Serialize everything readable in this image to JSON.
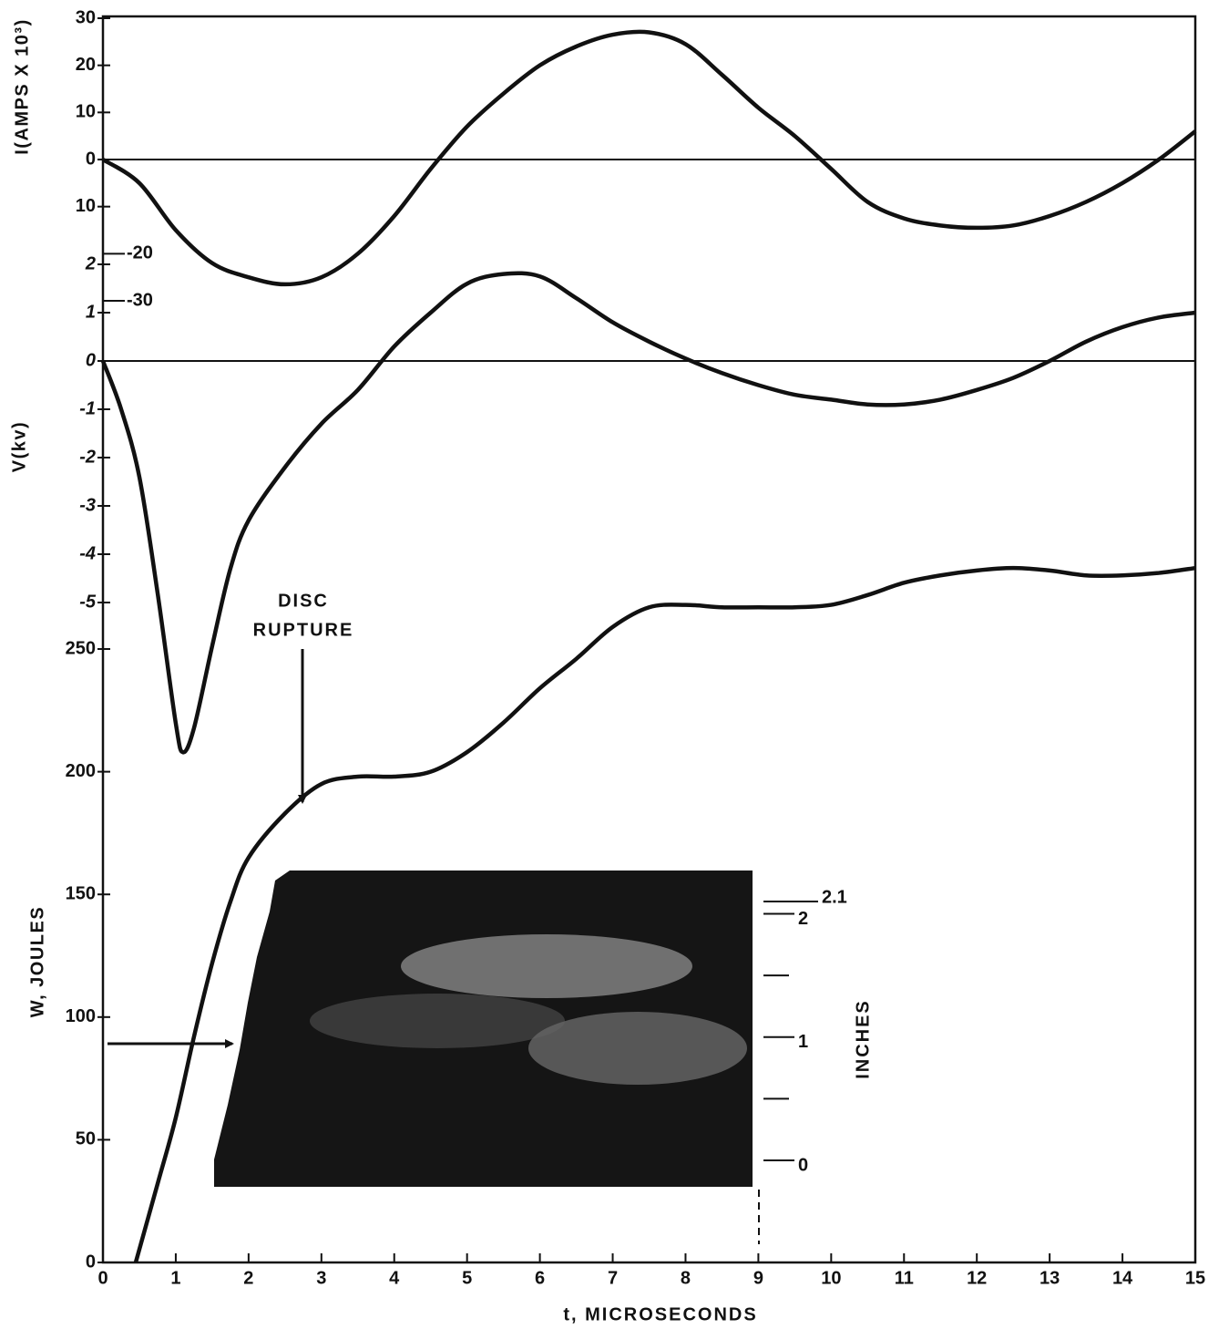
{
  "chart_data": [
    {
      "type": "line",
      "ylabel": "I(AMPS X 10³)",
      "color": "#111111",
      "zero_line": true,
      "ylim": [
        -30,
        30
      ],
      "yticks": [
        30,
        20,
        10,
        0,
        {
          "value": -10,
          "label": "10"
        },
        -20,
        -30
      ],
      "x": [
        0,
        0.5,
        1,
        1.5,
        2,
        2.5,
        3,
        3.5,
        4,
        4.5,
        5,
        5.5,
        6,
        6.5,
        7,
        7.5,
        8,
        8.5,
        9,
        9.5,
        10,
        10.5,
        11,
        11.5,
        12,
        12.5,
        13,
        13.5,
        14,
        14.5,
        15
      ],
      "values": [
        0,
        -5,
        -15,
        -22,
        -25,
        -26.5,
        -25,
        -20,
        -12,
        -2,
        7,
        14,
        20,
        24,
        26.5,
        27,
        24.5,
        18,
        11,
        5,
        -2,
        -9,
        -12.5,
        -14,
        -14.5,
        -14,
        -12,
        -9,
        -5,
        0,
        6
      ]
    },
    {
      "type": "line",
      "ylabel": "V(kv)",
      "color": "#111111",
      "zero_line": true,
      "ylim": [
        -8.5,
        2
      ],
      "yticks": [
        2,
        1,
        0,
        -1,
        -2,
        -3,
        -4,
        -5
      ],
      "x": [
        0,
        0.25,
        0.5,
        0.75,
        1,
        1.1,
        1.25,
        1.5,
        1.75,
        2,
        2.5,
        3,
        3.5,
        4,
        4.5,
        5,
        5.5,
        6,
        6.5,
        7,
        7.5,
        8,
        8.5,
        9,
        9.5,
        10,
        10.5,
        11,
        11.5,
        12,
        12.5,
        13,
        13.5,
        14,
        14.5,
        15
      ],
      "values": [
        0,
        -1,
        -2.4,
        -4.8,
        -7.5,
        -8.1,
        -7.6,
        -5.9,
        -4.3,
        -3.3,
        -2.2,
        -1.3,
        -0.6,
        0.3,
        1,
        1.6,
        1.8,
        1.75,
        1.3,
        0.8,
        0.4,
        0.05,
        -0.25,
        -0.5,
        -0.7,
        -0.8,
        -0.9,
        -0.9,
        -0.8,
        -0.6,
        -0.35,
        0,
        0.4,
        0.7,
        0.9,
        1
      ]
    },
    {
      "type": "line",
      "ylabel": "W, JOULES",
      "color": "#111111",
      "ylim": [
        0,
        285
      ],
      "yticks": [
        0,
        50,
        100,
        150,
        200,
        250
      ],
      "xlabel": "t, MICROSECONDS",
      "xlim": [
        0,
        15
      ],
      "xticks": [
        0,
        1,
        2,
        3,
        4,
        5,
        6,
        7,
        8,
        9,
        10,
        11,
        12,
        13,
        14,
        15
      ],
      "annotation": [
        "DISC",
        "RUPTURE"
      ],
      "x": [
        0.45,
        0.75,
        1,
        1.25,
        1.5,
        1.75,
        2,
        2.5,
        3,
        3.5,
        4,
        4.5,
        5,
        5.5,
        6,
        6.5,
        7,
        7.5,
        8,
        8.5,
        9,
        9.5,
        10,
        10.5,
        11,
        11.5,
        12,
        12.5,
        13,
        13.5,
        14,
        14.5,
        15
      ],
      "values": [
        0,
        32,
        59,
        92,
        122,
        147,
        165,
        183,
        195,
        198,
        198,
        200,
        208,
        220,
        234,
        246,
        259,
        267,
        268,
        267,
        267,
        267,
        268,
        272,
        277,
        280,
        282,
        283,
        282,
        280,
        280,
        281,
        283
      ],
      "inset_label": "INCHES",
      "inset_ylim": [
        0,
        2.1
      ],
      "inset_yticks": [
        0,
        1,
        2,
        2.1
      ],
      "inset_minor_ticks": [
        0.5,
        1.5
      ]
    }
  ]
}
